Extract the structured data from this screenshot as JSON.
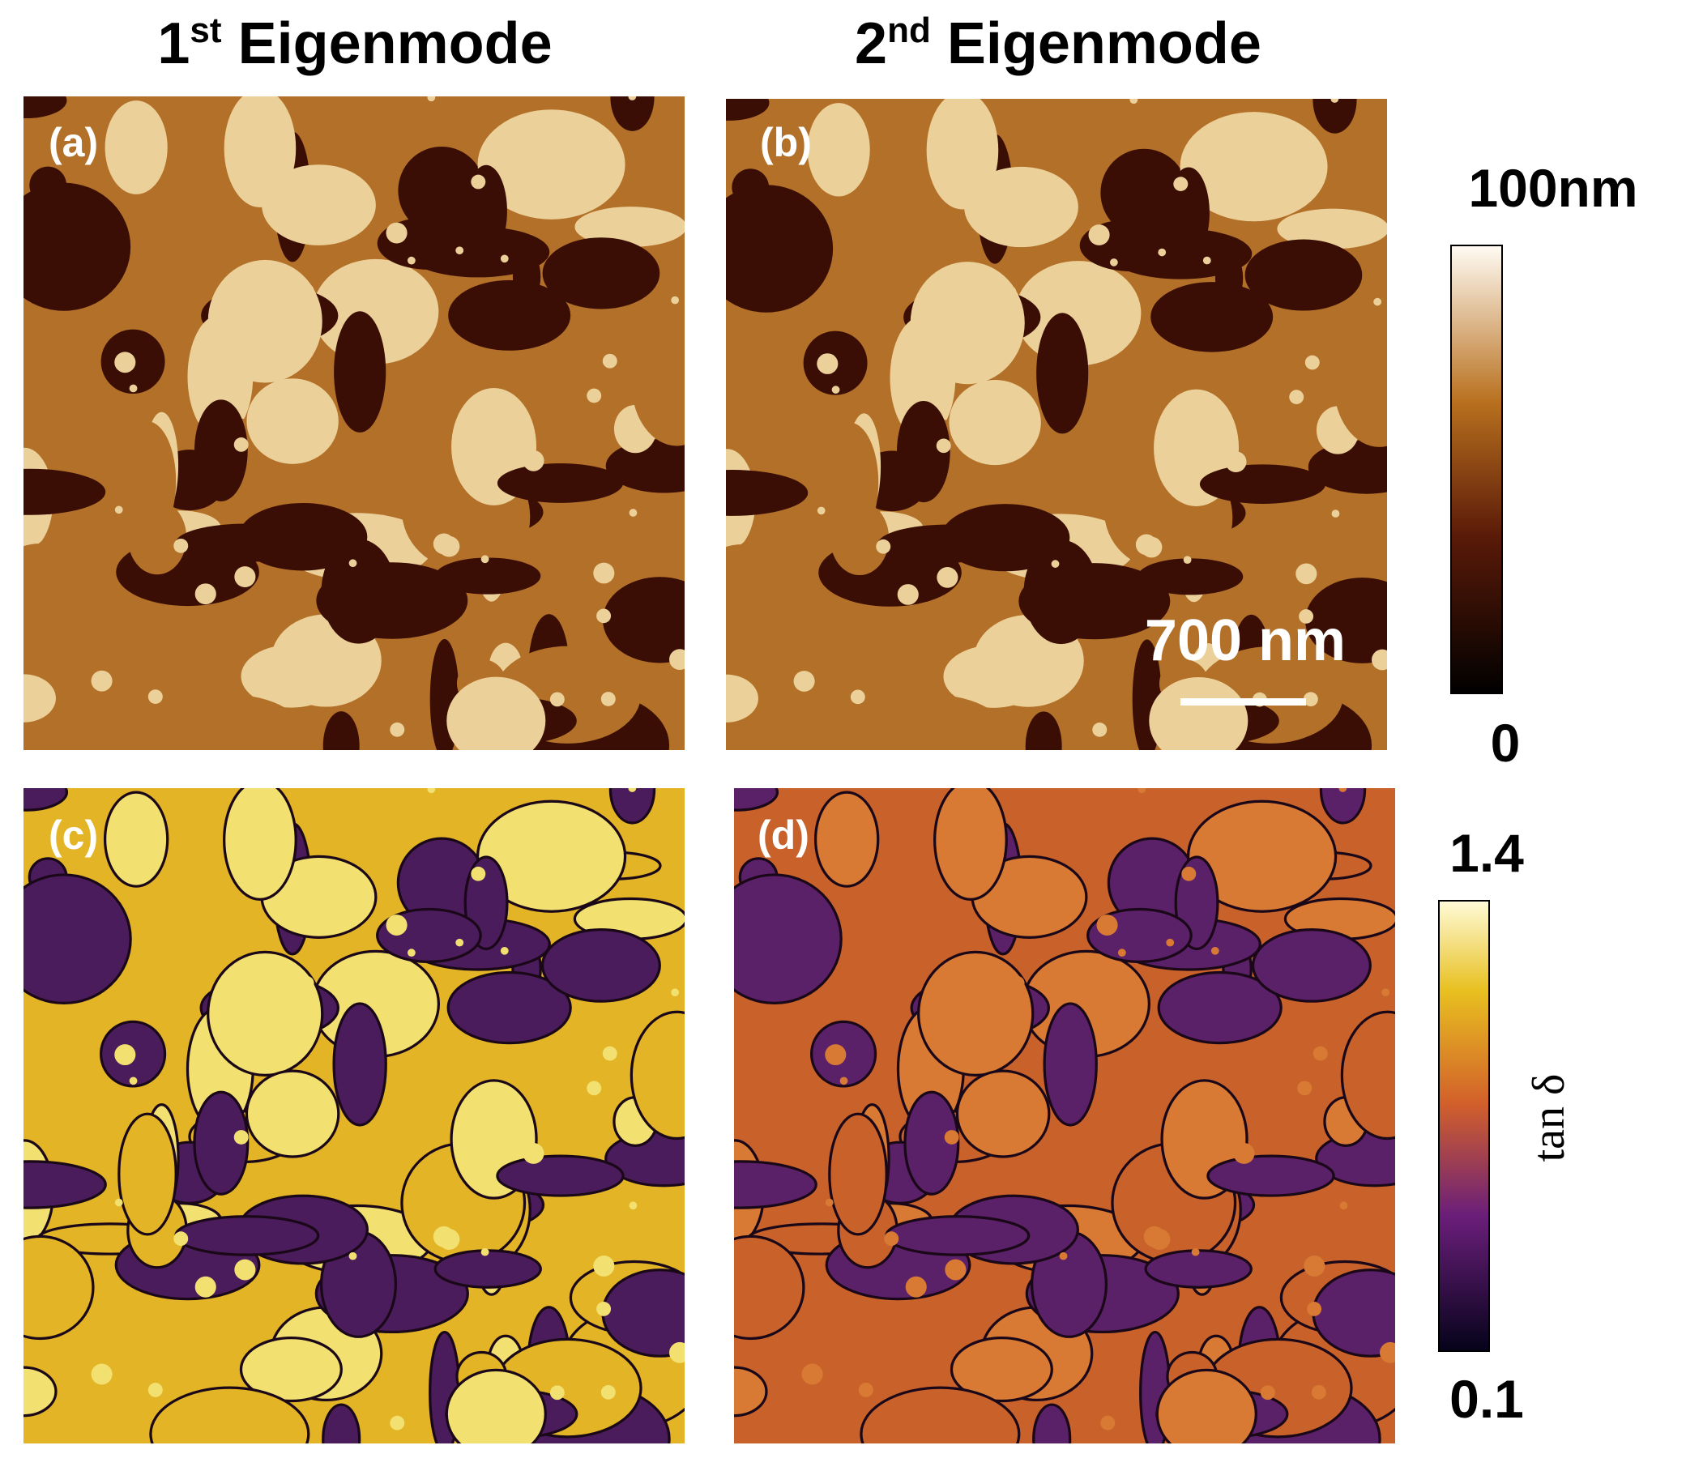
{
  "columns": [
    {
      "number": "1",
      "ordinal": "st",
      "label": "Eigenmode"
    },
    {
      "number": "2",
      "ordinal": "nd",
      "label": "Eigenmode"
    }
  ],
  "panels": [
    "(a)",
    "(b)",
    "(c)",
    "(d)"
  ],
  "scale_bar": "700 nm",
  "height_colorbar": {
    "max": "100nm",
    "min": "0"
  },
  "phase_colorbar": {
    "max": "1.4",
    "min": "0.1",
    "label": "tan δ"
  }
}
